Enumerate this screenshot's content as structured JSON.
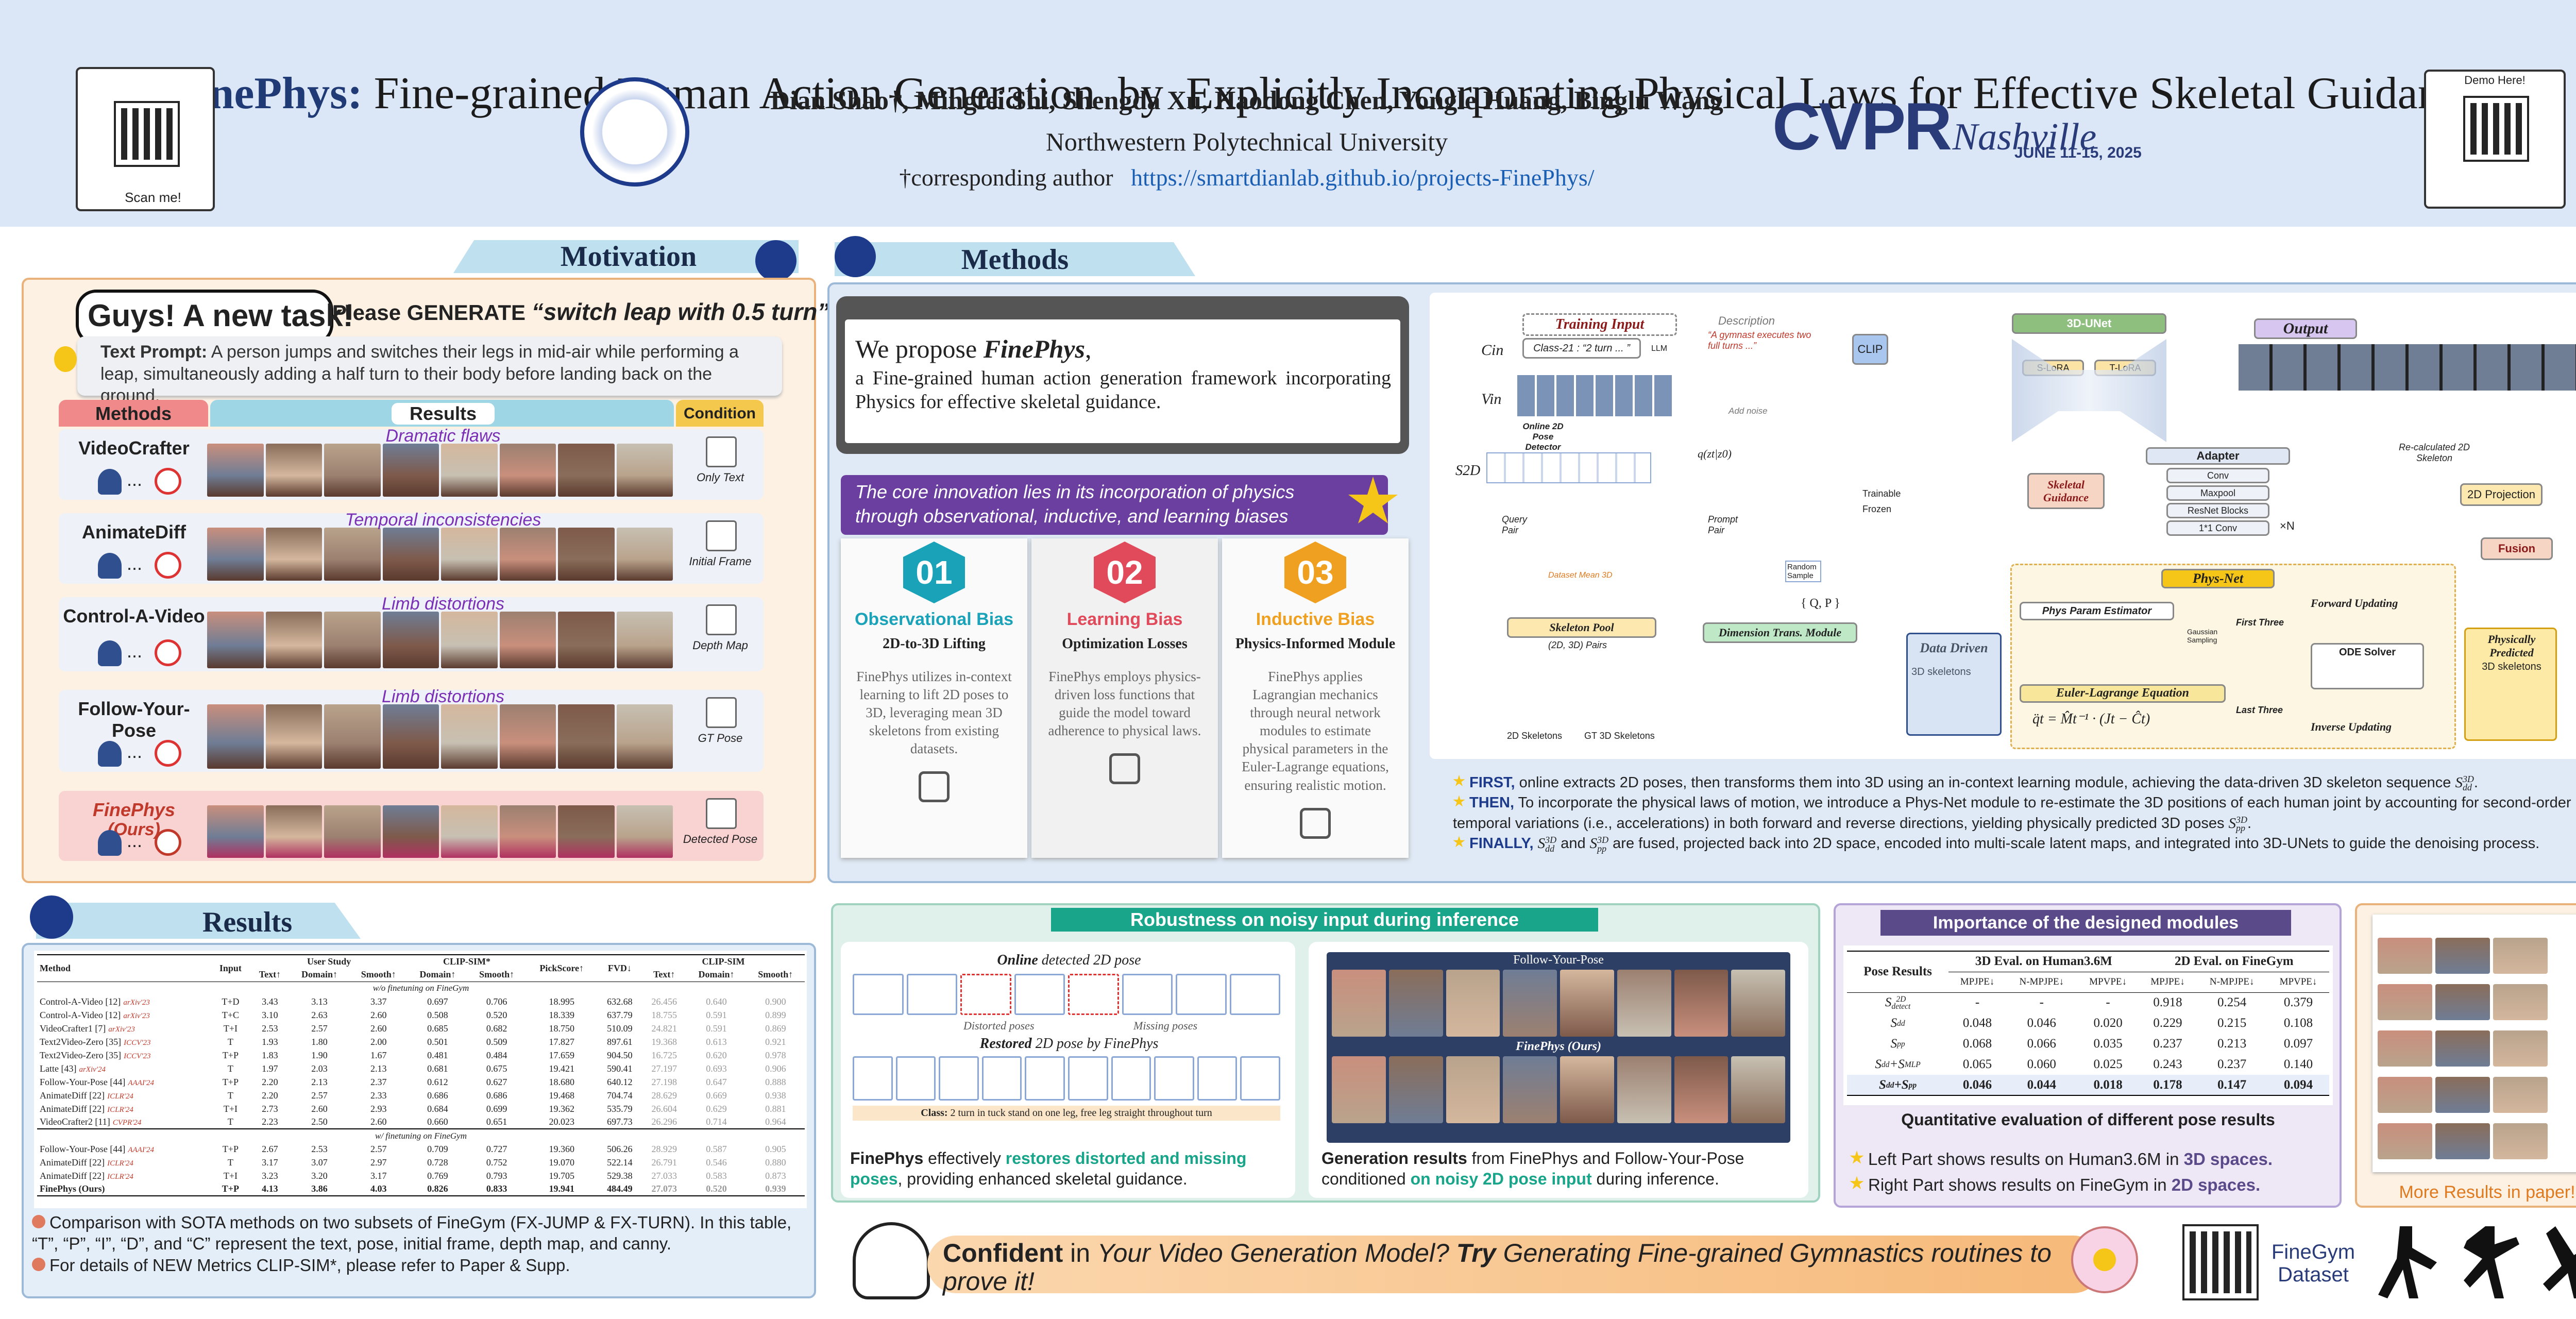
{
  "header": {
    "title_lead": "FinePhys:",
    "title_rest": "Fine-grained Human Action Generation  by  Explicitly Incorporating Physical Laws for Effective Skeletal Guidance",
    "authors": "Dian Shao†, Mingfei Shi, Shengda Xu, Haodong Chen, Yongle Huang, Binglu Wang",
    "affiliation": "Northwestern Polytechnical University",
    "corresponding": "†corresponding author",
    "url": "https://smartdianlab.github.io/projects-FinePhys/",
    "qr_left": "Scan me!",
    "qr_right": "Demo Here!",
    "conference": {
      "name": "CVPR",
      "city": "Nashville",
      "dates": "JUNE 11-15, 2025"
    }
  },
  "motivation": {
    "title": "Motivation",
    "bubble": "Guys! A new task!",
    "please": "Please GENERATE",
    "action": "“switch leap with 0.5 turn”",
    "prompt_label": "Text Prompt:",
    "prompt": "A person jumps and switches their legs in mid-air while performing a leap, simultaneously adding a half turn to their body before landing back on the ground.",
    "headers": [
      "Methods",
      "Results",
      "Condition"
    ],
    "rows": [
      {
        "method": "VideoCrafter",
        "flaw": "Dramatic flaws",
        "condition": "Only Text"
      },
      {
        "method": "AnimateDiff",
        "flaw": "Temporal inconsistencies",
        "condition": "Initial Frame"
      },
      {
        "method": "Control-A-Video",
        "flaw": "Limb distortions",
        "condition": "Depth Map"
      },
      {
        "method": "Follow-Your-Pose",
        "flaw": "Limb distortions",
        "condition": "GT Pose"
      },
      {
        "method": "FinePhys",
        "tag": "(Ours)",
        "condition": "Detected Pose"
      }
    ],
    "ellipsis": "..."
  },
  "methods": {
    "title": "Methods",
    "propose_lead": "We propose ",
    "propose_name": "FinePhys",
    "propose_end": ",",
    "propose_text": "a Fine-grained human action generation framework incorporating Physics for effective skeletal guidance.",
    "banner": "The core innovation lies in its incorporation of physics through observational, inductive, and learning biases",
    "cards": [
      {
        "num": "01",
        "name": "Observational Bias",
        "sub": "2D-to-3D Lifting",
        "text": "FinePhys utilizes in-context learning to lift 2D poses to 3D, leveraging mean 3D skeletons from existing datasets."
      },
      {
        "num": "02",
        "name": "Learning Bias",
        "sub": "Optimization Losses",
        "text": "FinePhys employs physics-driven loss functions that guide the model toward adherence to physical laws."
      },
      {
        "num": "03",
        "name": "Inductive Bias",
        "sub": "Physics-Informed Module",
        "text": "FinePhys applies Lagrangian mechanics through neural network modules to estimate physical parameters in the Euler-Lagrange equations, ensuring realistic motion."
      }
    ],
    "diagram": {
      "training_input": "Training Input",
      "class_text": "Class-21 : “2 turn ... ”",
      "llm": "LLM",
      "description": "Description",
      "desc_text": "“A gymnast executes two full turns ...”",
      "clip": "CLIP",
      "c_in": "Cin",
      "v_in": "Vin",
      "s2d": "S2D",
      "detector": "Online 2D Pose Detector",
      "add_noise": "Add noise",
      "q": "q(zt|z0)",
      "unet": "3D-UNet",
      "slora": "S-LoRA",
      "tlora": "T-LoRA",
      "output": "Output",
      "adapter": "Adapter",
      "adapter_layers": [
        "Conv",
        "Maxpool",
        "ResNet Blocks",
        "1*1 Conv"
      ],
      "times_n": "×N",
      "skeletal_guidance": "Skeletal Guidance",
      "recalc": "Re-calculated 2D Skeleton",
      "projection": "2D Projection",
      "fusion": "Fusion",
      "trainable": "Trainable",
      "frozen": "Frozen",
      "query": "Query Pair",
      "prompt": "Prompt Pair",
      "dataset_mean": "Dataset Mean 3D",
      "random": "Random Sample",
      "pool": "Skeleton Pool",
      "pairs": "(2D, 3D) Pairs",
      "skel2d": "2D Skeletons",
      "gt3d": "GT 3D Skeletons",
      "dtm": "Dimension Trans. Module",
      "qp": "{ Q, P }",
      "data_driven": "Data Driven",
      "skel3d": "3D skeletons",
      "physnet": "Phys-Net",
      "estimator": "Phys Param Estimator",
      "first_three": "First Three",
      "forward": "Forward Updating",
      "ode": "ODE Solver",
      "euler": "Euler-Lagrange Equation",
      "euler_eq": "q̈t = M̂t⁻¹ · (Jt − Ĉt)",
      "gauss": "Gaussian Sampling",
      "last_three": "Last Three",
      "inverse": "Inverse Updating",
      "phys_pred": "Physically Predicted",
      "phys_pred2": "3D skeletons"
    },
    "steps": [
      {
        "lead": "FIRST,",
        "text": " online extracts 2D poses, then transforms them into 3D using an in-context learning module, achieving the data-driven 3D skeleton sequence ",
        "math": {
          "t": "S",
          "sup": "3D",
          "sub": "dd"
        },
        "end": "."
      },
      {
        "lead": "THEN,",
        "text": " To incorporate the physical laws of motion, we introduce a Phys-Net module to re-estimate the 3D positions of each human joint by accounting for second-order temporal variations (i.e., accelerations) in both forward and reverse directions, yielding physically predicted 3D poses ",
        "math": {
          "t": "S",
          "sup": "3D",
          "sub": "pp"
        },
        "end": "."
      },
      {
        "lead": "FINALLY,",
        "text": " ",
        "math": {
          "t": "S",
          "sup": "3D",
          "sub": "dd"
        },
        "mid": " and ",
        "math2": {
          "t": "S",
          "sup": "3D",
          "sub": "pp"
        },
        "end": " are fused, projected back into 2D space, encoded into multi-scale latent maps, and integrated into 3D-UNets to guide the denoising process."
      }
    ]
  },
  "results": {
    "title": "Results",
    "table": {
      "method_header": "Method",
      "input_header": "Input",
      "user_study": {
        "name": "User Study",
        "columns": [
          "Text↑",
          "Domain↑",
          "Smooth↑"
        ]
      },
      "clip_star": {
        "name": "CLIP-SIM*",
        "columns": [
          "Domain↑",
          "Smooth↑"
        ]
      },
      "pickscore": "PickScore↑",
      "fvd": "FVD↓",
      "clip": {
        "name": "CLIP-SIM",
        "columns": [
          "Text↑",
          "Domain↑",
          "Smooth↑"
        ]
      },
      "sections": [
        {
          "name": "w/o finetuning on FineGym",
          "rows": [
            {
              "method": "Control-A-Video [12]",
              "venue": "arXiv'23",
              "input": "T+D",
              "cells": [
                "3.43",
                "3.13",
                "3.37",
                "0.697",
                "0.706",
                "18.995",
                "632.68",
                "26.456",
                "0.640",
                "0.900"
              ]
            },
            {
              "method": "Control-A-Video [12]",
              "venue": "arXiv'23",
              "input": "T+C",
              "cells": [
                "3.10",
                "2.63",
                "2.60",
                "0.508",
                "0.520",
                "18.339",
                "637.79",
                "18.755",
                "0.591",
                "0.899"
              ]
            },
            {
              "method": "VideoCrafter1 [7]",
              "venue": "arXiv'23",
              "input": "T+I",
              "cells": [
                "2.53",
                "2.57",
                "2.60",
                "0.685",
                "0.682",
                "18.750",
                "510.09",
                "24.821",
                "0.591",
                "0.869"
              ]
            },
            {
              "method": "Text2Video-Zero [35]",
              "venue": "ICCV'23",
              "input": "T",
              "cells": [
                "1.93",
                "1.80",
                "2.00",
                "0.501",
                "0.509",
                "17.827",
                "897.61",
                "19.368",
                "0.613",
                "0.921"
              ]
            },
            {
              "method": "Text2Video-Zero [35]",
              "venue": "ICCV'23",
              "input": "T+P",
              "cells": [
                "1.83",
                "1.90",
                "1.67",
                "0.481",
                "0.484",
                "17.659",
                "904.50",
                "16.725",
                "0.620",
                "0.978"
              ]
            },
            {
              "method": "Latte [43]",
              "venue": "arXiv'24",
              "input": "T",
              "cells": [
                "1.97",
                "2.03",
                "2.13",
                "0.681",
                "0.675",
                "19.421",
                "590.41",
                "27.197",
                "0.693",
                "0.906"
              ]
            },
            {
              "method": "Follow-Your-Pose [44]",
              "venue": "AAAI'24",
              "input": "T+P",
              "cells": [
                "2.20",
                "2.13",
                "2.37",
                "0.612",
                "0.627",
                "18.680",
                "640.12",
                "27.198",
                "0.647",
                "0.888"
              ]
            },
            {
              "method": "AnimateDiff [22]",
              "venue": "ICLR'24",
              "input": "T",
              "cells": [
                "2.20",
                "2.57",
                "2.33",
                "0.686",
                "0.686",
                "19.468",
                "704.74",
                "28.629",
                "0.669",
                "0.938"
              ]
            },
            {
              "method": "AnimateDiff [22]",
              "venue": "ICLR'24",
              "input": "T+I",
              "cells": [
                "2.73",
                "2.60",
                "2.93",
                "0.684",
                "0.699",
                "19.362",
                "535.79",
                "26.604",
                "0.629",
                "0.881"
              ]
            },
            {
              "method": "VideoCrafter2 [11]",
              "venue": "CVPR'24",
              "input": "T",
              "cells": [
                "2.23",
                "2.50",
                "2.60",
                "0.660",
                "0.651",
                "20.023",
                "697.73",
                "26.296",
                "0.714",
                "0.964"
              ]
            }
          ]
        },
        {
          "name": "w/ finetuning on FineGym",
          "rows": [
            {
              "method": "Follow-Your-Pose [44]",
              "venue": "AAAI'24",
              "input": "T+P",
              "cells": [
                "2.67",
                "2.53",
                "2.57",
                "0.709",
                "0.727",
                "19.360",
                "506.26",
                "28.929",
                "0.587",
                "0.905"
              ]
            },
            {
              "method": "AnimateDiff [22]",
              "venue": "ICLR'24",
              "input": "T",
              "cells": [
                "3.17",
                "3.07",
                "2.97",
                "0.728",
                "0.752",
                "19.070",
                "522.14",
                "26.791",
                "0.546",
                "0.880"
              ]
            },
            {
              "method": "AnimateDiff [22]",
              "venue": "ICLR'24",
              "input": "T+I",
              "cells": [
                "3.23",
                "3.20",
                "3.17",
                "0.769",
                "0.793",
                "19.705",
                "529.38",
                "27.033",
                "0.583",
                "0.873"
              ]
            },
            {
              "method": "FinePhys (Ours)",
              "input": "T+P",
              "cells": [
                "4.13",
                "3.86",
                "4.03",
                "0.826",
                "0.833",
                "19.941",
                "484.49",
                "27.073",
                "0.520",
                "0.939"
              ]
            }
          ]
        }
      ]
    },
    "notes": [
      "Comparison with SOTA methods on two subsets of FineGym (FX-JUMP & FX-TURN). In this table, “T”, “P”, “I”, “D”, and “C” represent the text, pose, initial frame, depth map, and canny.",
      "For details of NEW Metrics CLIP-SIM*, please refer to Paper & Supp."
    ]
  },
  "robustness": {
    "title": "Robustness on noisy input during inference",
    "online_lead": "Online",
    "online_rest": " detected 2D pose",
    "distorted": "Distorted poses",
    "missing": "Missing poses",
    "restored_lead": "Restored",
    "restored_rest": " 2D pose by FinePhys",
    "class_label": "Class:",
    "class_text": " 2 turn in tuck stand on one leg, free leg straight throughout turn",
    "fyp": "Follow-Your-Pose",
    "ours": "FinePhys (Ours)",
    "left_caption": [
      "FinePhys",
      " effectively ",
      "restores distorted and missing poses",
      ", providing enhanced skeletal guidance."
    ],
    "right_caption": [
      "Generation results",
      " from FinePhys and Follow-Your-Pose conditioned ",
      "on noisy 2D pose input",
      " during inference."
    ],
    "ellipsis": "..."
  },
  "modules": {
    "title": "Importance of the designed modules",
    "row_header": "Pose Results",
    "groups": [
      "3D Eval. on Human3.6M",
      "2D Eval. on FineGym"
    ],
    "columns": [
      "MPJPE↓",
      "N-MPJPE↓",
      "MPVPE↓",
      "MPJPE↓",
      "N-MPJPE↓",
      "MPVPE↓"
    ],
    "rows": [
      {
        "label": [
          {
            "t": "S",
            "sup": "2D",
            "sub": "detect"
          }
        ],
        "cells": [
          "-",
          "-",
          "-",
          "0.918",
          "0.254",
          "0.379"
        ]
      },
      {
        "label": [
          {
            "t": "S",
            "sub": "dd"
          }
        ],
        "cells": [
          "0.048",
          "0.046",
          "0.020",
          "0.229",
          "0.215",
          "0.108"
        ]
      },
      {
        "label": [
          {
            "t": "S",
            "sub": "pp"
          }
        ],
        "cells": [
          "0.068",
          "0.066",
          "0.035",
          "0.237",
          "0.213",
          "0.097"
        ]
      },
      {
        "label": [
          {
            "t": "S",
            "sub": "dd"
          },
          {
            "t": "+S",
            "sub": "MLP"
          }
        ],
        "cells": [
          "0.065",
          "0.060",
          "0.025",
          "0.243",
          "0.237",
          "0.140"
        ]
      },
      {
        "label": [
          {
            "t": "S",
            "sub": "dd"
          },
          {
            "t": "+S",
            "sub": "pp"
          }
        ],
        "cells": [
          "0.046",
          "0.044",
          "0.018",
          "0.178",
          "0.147",
          "0.094"
        ]
      }
    ],
    "caption": "Quantitative evaluation of different pose results",
    "notes": [
      [
        "Left Part shows results on Human3.6M in ",
        "3D spaces."
      ],
      [
        "Right Part shows results on FineGym in ",
        "2D spaces."
      ]
    ]
  },
  "more_results": "More Results in paper!",
  "banner": [
    "Confident",
    " in ",
    "Your Video Generation Model?",
    " Try",
    " Generating Fine-grained Gymnastics routines to prove it!"
  ],
  "dataset": {
    "name": "FineGym",
    "word": "Dataset"
  }
}
